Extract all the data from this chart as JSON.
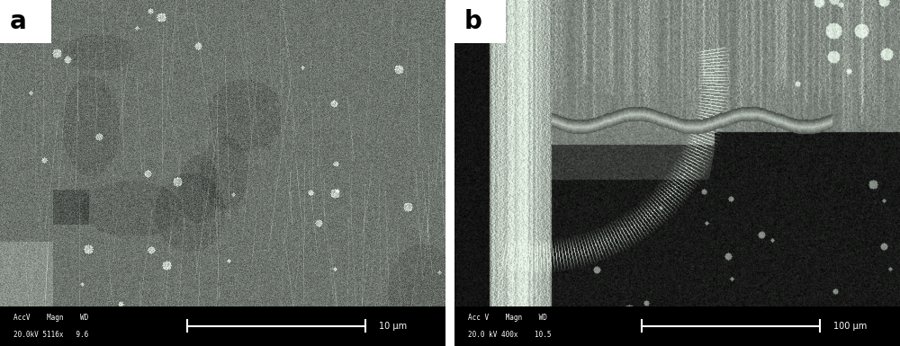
{
  "fig_width": 10.0,
  "fig_height": 3.85,
  "dpi": 100,
  "panel_a": {
    "label": "a",
    "label_bg_color": "#ffffff",
    "label_text_color": "#000000",
    "label_fontsize": 20,
    "label_fontweight": "bold",
    "scalebar_text": "10 μm",
    "scalebar_info_line1": "AccV    Magn    WD",
    "scalebar_info_line2": "20.0kV 5116x   9.6"
  },
  "panel_b": {
    "label": "b",
    "label_bg_color": "#ffffff",
    "label_text_color": "#000000",
    "label_fontsize": 20,
    "label_fontweight": "bold",
    "scalebar_text": "100 μm",
    "scalebar_info_line1": "Acc V    Magn    WD",
    "scalebar_info_line2": "20.0 kV 400x    10.5"
  },
  "gap_color": "#ffffff"
}
